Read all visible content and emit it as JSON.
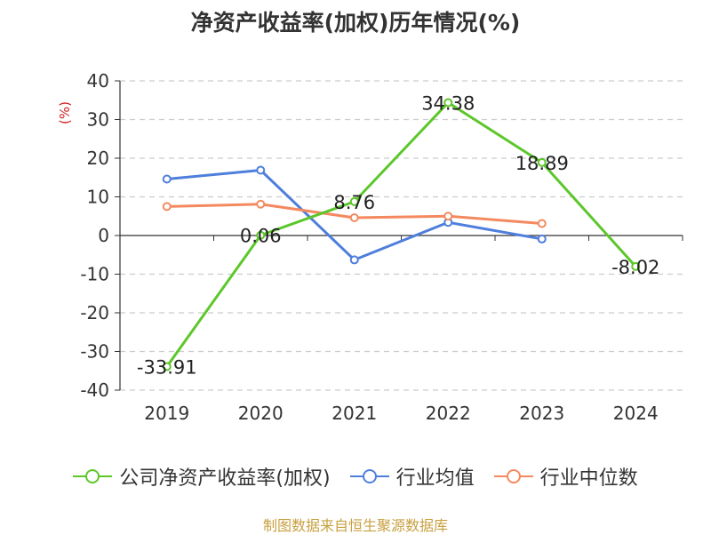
{
  "title": "净资产收益率(加权)历年情况(%)",
  "source_note": "制图数据来自恒生聚源数据库",
  "chart_data": {
    "type": "line",
    "title": "净资产收益率(加权)历年情况(%)",
    "xlabel": "",
    "ylabel": "(%)",
    "categories": [
      "2019",
      "2020",
      "2021",
      "2022",
      "2023",
      "2024"
    ],
    "ylim": [
      -40,
      40
    ],
    "yticks": [
      40,
      30,
      20,
      10,
      0,
      -10,
      -20,
      -30,
      -40
    ],
    "grid": "horizontal dashed",
    "legend_position": "bottom",
    "series": [
      {
        "name": "公司净资产收益率(加权)",
        "color": "#5cc72a",
        "values": [
          -33.91,
          0.06,
          8.76,
          34.38,
          18.89,
          -8.02
        ],
        "labels": [
          "-33.91",
          "0.06",
          "8.76",
          "34.38",
          "18.89",
          "-8.02"
        ]
      },
      {
        "name": "行业均值",
        "color": "#4f7fdc",
        "values": [
          14.6,
          16.9,
          -6.3,
          3.4,
          -0.9,
          null
        ]
      },
      {
        "name": "行业中位数",
        "color": "#f4895f",
        "values": [
          7.5,
          8.1,
          4.6,
          5.0,
          3.1,
          null
        ]
      }
    ]
  }
}
